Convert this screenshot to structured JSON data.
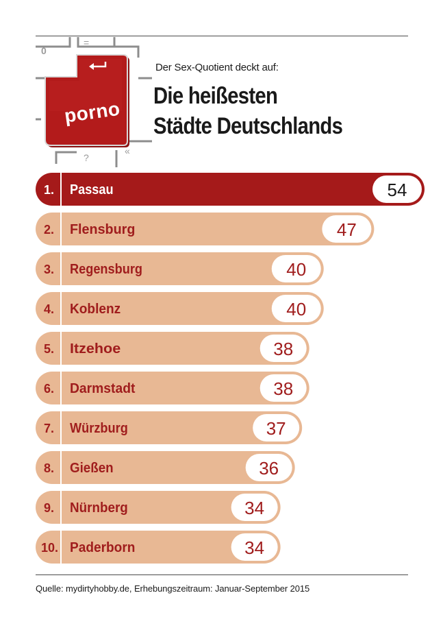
{
  "header": {
    "subtitle": "Der Sex-Quotient deckt auf:",
    "title_line1": "Die heißesten",
    "title_line2": "Städte Deutschlands"
  },
  "logo": {
    "key_label": "porno",
    "key_icon": "return-arrow-icon",
    "other_keys": [
      "0",
      "=",
      "?",
      "«"
    ]
  },
  "chart_data": {
    "type": "bar",
    "orientation": "horizontal",
    "title": "Die heißesten Städte Deutschlands",
    "categories": [
      "Passau",
      "Flensburg",
      "Regensburg",
      "Koblenz",
      "Itzehoe",
      "Darmstadt",
      "Würzburg",
      "Gießen",
      "Nürnberg",
      "Paderborn"
    ],
    "ranks": [
      "1.",
      "2.",
      "3.",
      "4.",
      "5.",
      "6.",
      "7.",
      "8.",
      "9.",
      "10."
    ],
    "values": [
      54,
      47,
      40,
      40,
      38,
      38,
      37,
      36,
      34,
      34
    ],
    "xlim": [
      0,
      54
    ]
  },
  "colors": {
    "highlight": "#a51a1a",
    "bar": "#e8b894",
    "text_dark_red": "#a01d1d",
    "text_dark": "#1a1a1a"
  },
  "footer": {
    "source": "Quelle: mydirtyhobby.de, Erhebungszeitraum: Januar-September 2015"
  }
}
